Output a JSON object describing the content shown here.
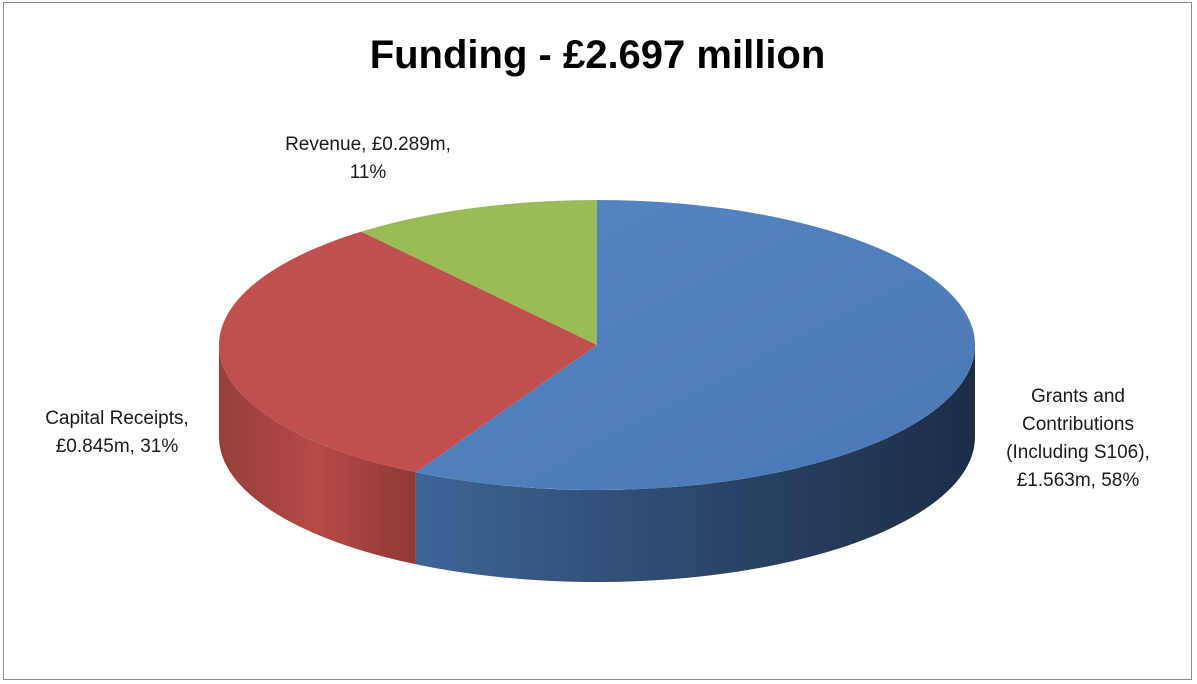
{
  "chart_data": {
    "type": "pie",
    "title": "Funding - £2.697 million",
    "slices": [
      {
        "label": "Grants and Contributions (Including S106)",
        "value": 1.563,
        "display": "£1.563m",
        "percent": 58,
        "color": "#4F81BD",
        "label_lines": [
          "Grants and",
          "Contributions",
          "(Including S106),",
          "£1.563m, 58%"
        ]
      },
      {
        "label": "Capital Receipts",
        "value": 0.845,
        "display": "£0.845m",
        "percent": 31,
        "color": "#C0504D",
        "label_lines": [
          "Capital Receipts,",
          "£0.845m, 31%"
        ]
      },
      {
        "label": "Revenue",
        "value": 0.289,
        "display": "£0.289m",
        "percent": 11,
        "color": "#9BBB59",
        "label_lines": [
          "Revenue, £0.289m,",
          "11%"
        ]
      }
    ],
    "legend": "none",
    "style": "3d"
  }
}
